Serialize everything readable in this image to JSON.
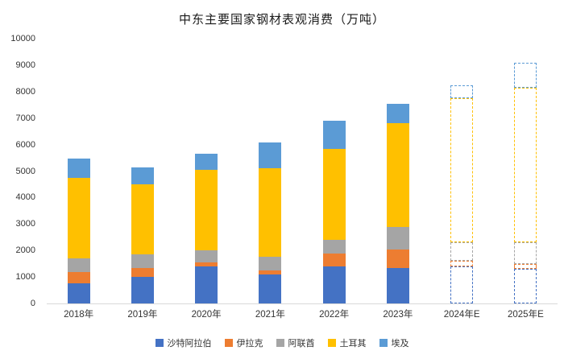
{
  "chart_data": {
    "type": "bar",
    "stacked": true,
    "title": "中东主要国家钢材表观消费（万吨）",
    "categories": [
      "2018年",
      "2019年",
      "2020年",
      "2021年",
      "2022年",
      "2023年",
      "2024年E",
      "2025年E"
    ],
    "series": [
      {
        "name": "沙特阿拉伯",
        "color": "#4472C4",
        "values": [
          750,
          1000,
          1400,
          1100,
          1400,
          1350,
          1400,
          1300
        ]
      },
      {
        "name": "伊拉克",
        "color": "#ED7D31",
        "values": [
          450,
          350,
          150,
          150,
          500,
          700,
          200,
          200
        ]
      },
      {
        "name": "阿联酋",
        "color": "#A5A5A5",
        "values": [
          500,
          500,
          450,
          500,
          500,
          850,
          700,
          800
        ]
      },
      {
        "name": "土耳其",
        "color": "#FFC000",
        "values": [
          3050,
          2650,
          3050,
          3350,
          3450,
          3900,
          5450,
          5850
        ]
      },
      {
        "name": "埃及",
        "color": "#5B9BD5",
        "values": [
          730,
          650,
          600,
          980,
          1050,
          750,
          500,
          950
        ]
      }
    ],
    "totals": [
      5480,
      5150,
      5650,
      6080,
      6900,
      7550,
      8250,
      9100
    ],
    "forecast_from_index": 6,
    "ylim": [
      0,
      10000
    ],
    "yticks": [
      0,
      1000,
      2000,
      3000,
      4000,
      5000,
      6000,
      7000,
      8000,
      9000,
      10000
    ],
    "legend_position": "bottom",
    "grid": false
  }
}
